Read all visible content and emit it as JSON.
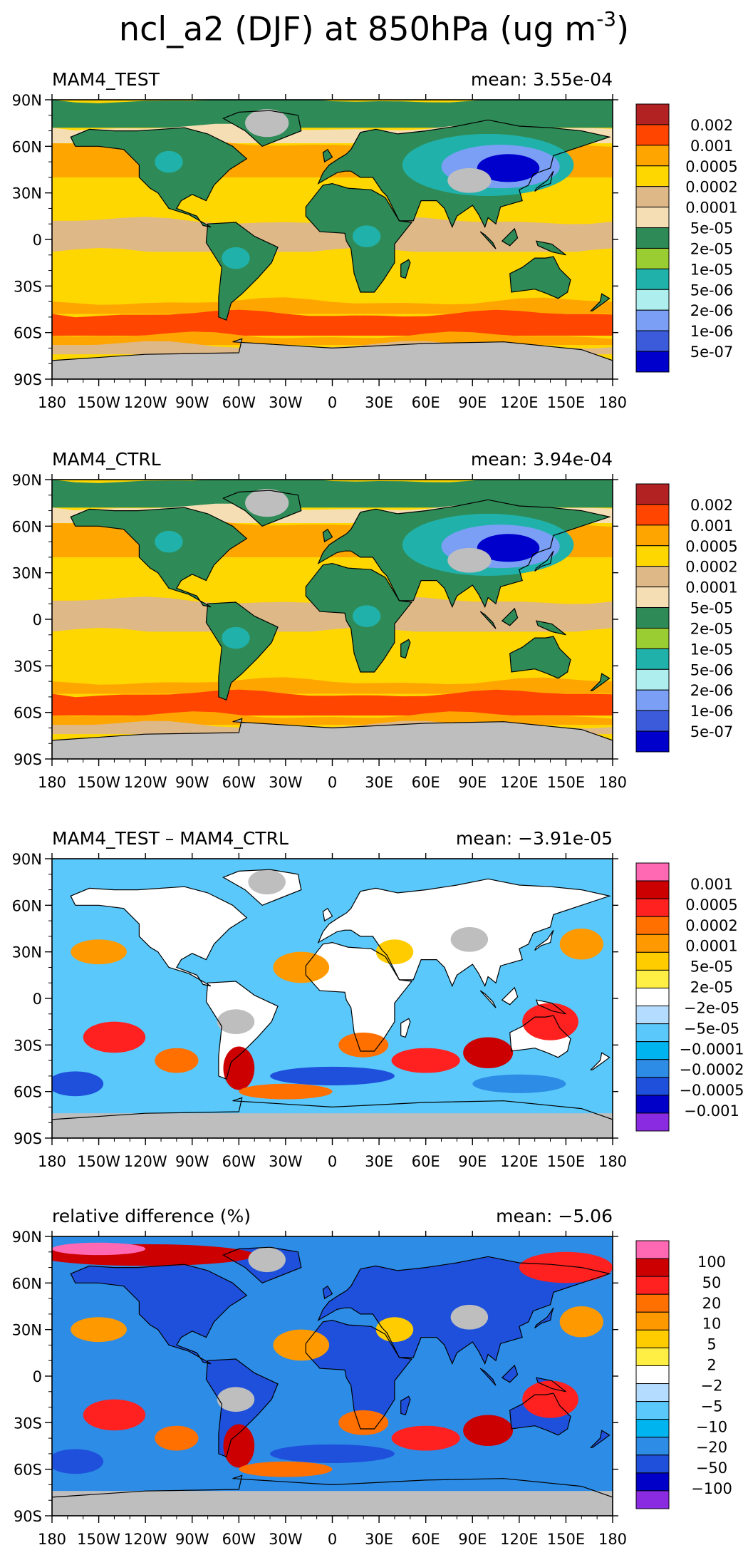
{
  "title": {
    "main": "ncl_a2 (DJF) at 850hPa (ug m",
    "exp": "-3",
    "close": ")"
  },
  "chart_data": [
    {
      "type": "heatmap",
      "title_left": "MAM4_TEST",
      "title_right": "mean: 3.55e-04",
      "xticks": [
        "180",
        "150W",
        "120W",
        "90W",
        "60W",
        "30W",
        "0",
        "30E",
        "60E",
        "90E",
        "120E",
        "150E",
        "180"
      ],
      "yticks": [
        "90N",
        "60N",
        "30N",
        "0",
        "30S",
        "60S",
        "90S"
      ],
      "legend_levels": [
        "0.002",
        "0.001",
        "0.0005",
        "0.0002",
        "0.0001",
        "5e-05",
        "2e-05",
        "1e-05",
        "5e-06",
        "2e-06",
        "1e-06",
        "5e-07"
      ],
      "legend_colors": [
        "#b22222",
        "#ff4500",
        "#ffa500",
        "#ffd700",
        "#deb887",
        "#f5deb3",
        "#2e8b57",
        "#9acd32",
        "#20b2aa",
        "#afeeee",
        "#7b9ff5",
        "#3b5bdb",
        "#0000cd"
      ]
    },
    {
      "type": "heatmap",
      "title_left": "MAM4_CTRL",
      "title_right": "mean: 3.94e-04",
      "xticks": [
        "180",
        "150W",
        "120W",
        "90W",
        "60W",
        "30W",
        "0",
        "30E",
        "60E",
        "90E",
        "120E",
        "150E",
        "180"
      ],
      "yticks": [
        "90N",
        "60N",
        "30N",
        "0",
        "30S",
        "60S",
        "90S"
      ],
      "legend_levels": [
        "0.002",
        "0.001",
        "0.0005",
        "0.0002",
        "0.0001",
        "5e-05",
        "2e-05",
        "1e-05",
        "5e-06",
        "2e-06",
        "1e-06",
        "5e-07"
      ],
      "legend_colors": [
        "#b22222",
        "#ff4500",
        "#ffa500",
        "#ffd700",
        "#deb887",
        "#f5deb3",
        "#2e8b57",
        "#9acd32",
        "#20b2aa",
        "#afeeee",
        "#7b9ff5",
        "#3b5bdb",
        "#0000cd"
      ]
    },
    {
      "type": "heatmap",
      "title_left": "MAM4_TEST – MAM4_CTRL",
      "title_right": "mean: −3.91e-05",
      "xticks": [
        "180",
        "150W",
        "120W",
        "90W",
        "60W",
        "30W",
        "0",
        "30E",
        "60E",
        "90E",
        "120E",
        "150E",
        "180"
      ],
      "yticks": [
        "90N",
        "60N",
        "30N",
        "0",
        "30S",
        "60S",
        "90S"
      ],
      "legend_levels": [
        "0.001",
        "0.0005",
        "0.0002",
        "0.0001",
        "5e-05",
        "2e-05",
        "−2e-05",
        "−5e-05",
        "−0.0001",
        "−0.0002",
        "−0.0005",
        "−0.001"
      ],
      "legend_colors": [
        "#ff69b4",
        "#cc0000",
        "#ff2020",
        "#ff7000",
        "#ff9900",
        "#ffcc00",
        "#ffee44",
        "#ffffff",
        "#b4dcff",
        "#5ac8fa",
        "#00b4f0",
        "#2d8ce6",
        "#1e50dc",
        "#0000c8",
        "#8a2be2"
      ]
    },
    {
      "type": "heatmap",
      "title_left": "relative difference (%)",
      "title_right": "mean: −5.06",
      "xticks": [
        "180",
        "150W",
        "120W",
        "90W",
        "60W",
        "30W",
        "0",
        "30E",
        "60E",
        "90E",
        "120E",
        "150E",
        "180"
      ],
      "yticks": [
        "90N",
        "60N",
        "30N",
        "0",
        "30S",
        "60S",
        "90S"
      ],
      "legend_levels": [
        "100",
        "50",
        "20",
        "10",
        "5",
        "2",
        "−2",
        "−5",
        "−10",
        "−20",
        "−50",
        "−100"
      ],
      "legend_colors": [
        "#ff69b4",
        "#cc0000",
        "#ff2020",
        "#ff7000",
        "#ff9900",
        "#ffcc00",
        "#ffee44",
        "#ffffff",
        "#b4dcff",
        "#5ac8fa",
        "#00b4f0",
        "#2d8ce6",
        "#1e50dc",
        "#0000c8",
        "#8a2be2"
      ]
    }
  ]
}
